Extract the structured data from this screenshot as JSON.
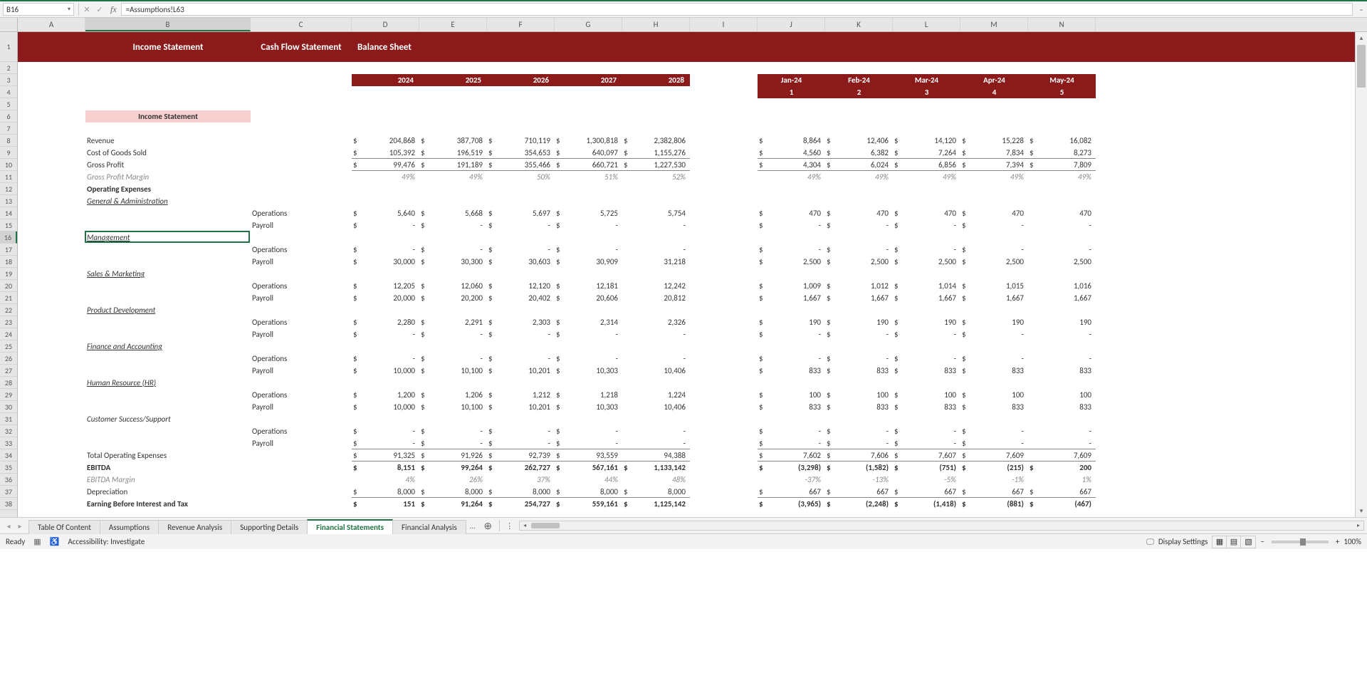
{
  "nameBox": "B16",
  "formula": "=Assumptions!L63",
  "colWidths": {
    "A": 95,
    "B": 232,
    "C": 142,
    "D": 95,
    "E": 95,
    "F": 95,
    "G": 95,
    "H": 95,
    "I": 95,
    "J": 95,
    "K": 95,
    "L": 95,
    "M": 95,
    "N": 95
  },
  "columns": [
    "A",
    "B",
    "C",
    "D",
    "E",
    "F",
    "G",
    "H",
    "I",
    "J",
    "K",
    "L",
    "M",
    "N"
  ],
  "selectedCell": "B16",
  "headerSections": [
    {
      "label": "Income Statement",
      "col": "B"
    },
    {
      "label": "Cash Flow Statement",
      "col": "C"
    },
    {
      "label": "Balance Sheet",
      "col": "D",
      "align": "left"
    }
  ],
  "years": [
    {
      "col": "D",
      "text": "2024"
    },
    {
      "col": "E",
      "text": "2025"
    },
    {
      "col": "F",
      "text": "2026"
    },
    {
      "col": "G",
      "text": "2027"
    },
    {
      "col": "H",
      "text": "2028"
    }
  ],
  "months": [
    {
      "col": "J",
      "text": "Jan-24",
      "num": "1"
    },
    {
      "col": "K",
      "text": "Feb-24",
      "num": "2"
    },
    {
      "col": "L",
      "text": "Mar-24",
      "num": "3"
    },
    {
      "col": "M",
      "text": "Apr-24",
      "num": "4"
    },
    {
      "col": "N",
      "text": "May-24",
      "num": "5"
    }
  ],
  "sectionTitle": "Income Statement",
  "rows": [
    {
      "r": 8,
      "labelB": "Revenue",
      "dollar": true,
      "vals": [
        "204,868",
        "387,708",
        "710,119",
        "1,300,818",
        "2,382,806"
      ],
      "mvals": [
        "8,864",
        "12,406",
        "14,120",
        "15,228",
        "16,082"
      ],
      "mdollar": true
    },
    {
      "r": 9,
      "labelB": "Cost of Goods Sold",
      "dollar": true,
      "vals": [
        "105,392",
        "196,519",
        "354,653",
        "640,097",
        "1,155,276"
      ],
      "mvals": [
        "4,560",
        "6,382",
        "7,264",
        "7,834",
        "8,273"
      ],
      "mdollar": true,
      "borderBottom": true
    },
    {
      "r": 10,
      "labelB": "Gross Profit",
      "dollar": true,
      "vals": [
        "99,476",
        "191,189",
        "355,466",
        "660,721",
        "1,227,530"
      ],
      "mvals": [
        "4,304",
        "6,024",
        "6,856",
        "7,394",
        "7,809"
      ],
      "mdollar": true,
      "borderBottom": true
    },
    {
      "r": 11,
      "labelB": "Gross Profit Margin",
      "italic": true,
      "vals": [
        "49%",
        "49%",
        "50%",
        "51%",
        "52%"
      ],
      "mvals": [
        "49%",
        "49%",
        "49%",
        "49%",
        "49%"
      ],
      "pct": true
    },
    {
      "r": 12,
      "labelB": "Operating Expenses",
      "bold": true
    },
    {
      "r": 13,
      "labelB": "General & Administration",
      "underline": true
    },
    {
      "r": 14,
      "labelC": "Operations",
      "dollar": true,
      "vals": [
        "5,640",
        "5,668",
        "5,697",
        "5,725",
        "5,754"
      ],
      "mvals": [
        "470",
        "470",
        "470",
        "470",
        "470"
      ],
      "mdollar": true,
      "lastNoDollar": true
    },
    {
      "r": 15,
      "labelC": "Payroll",
      "dollar": true,
      "vals": [
        "-",
        "-",
        "-",
        "-",
        "-"
      ],
      "mvals": [
        "-",
        "-",
        "-",
        "-",
        "-"
      ],
      "mdollar": true,
      "lastNoDollar": true
    },
    {
      "r": 16,
      "labelB": "Management",
      "underline": true,
      "active": true
    },
    {
      "r": 17,
      "labelC": "Operations",
      "dollar": true,
      "vals": [
        "-",
        "-",
        "-",
        "-",
        "-"
      ],
      "mvals": [
        "-",
        "-",
        "-",
        "-",
        "-"
      ],
      "mdollar": true,
      "lastNoDollar": true
    },
    {
      "r": 18,
      "labelC": "Payroll",
      "dollar": true,
      "vals": [
        "30,000",
        "30,300",
        "30,603",
        "30,909",
        "31,218"
      ],
      "mvals": [
        "2,500",
        "2,500",
        "2,500",
        "2,500",
        "2,500"
      ],
      "mdollar": true,
      "lastNoDollar": true
    },
    {
      "r": 19,
      "labelB": "Sales & Marketing",
      "underline": true
    },
    {
      "r": 20,
      "labelC": "Operations",
      "dollar": true,
      "vals": [
        "12,205",
        "12,060",
        "12,120",
        "12,181",
        "12,242"
      ],
      "mvals": [
        "1,009",
        "1,012",
        "1,014",
        "1,015",
        "1,016"
      ],
      "mdollar": true,
      "lastNoDollar": true
    },
    {
      "r": 21,
      "labelC": "Payroll",
      "dollar": true,
      "vals": [
        "20,000",
        "20,200",
        "20,402",
        "20,606",
        "20,812"
      ],
      "mvals": [
        "1,667",
        "1,667",
        "1,667",
        "1,667",
        "1,667"
      ],
      "mdollar": true,
      "lastNoDollar": true
    },
    {
      "r": 22,
      "labelB": "Product Development",
      "underline": true
    },
    {
      "r": 23,
      "labelC": "Operations",
      "dollar": true,
      "vals": [
        "2,280",
        "2,291",
        "2,303",
        "2,314",
        "2,326"
      ],
      "mvals": [
        "190",
        "190",
        "190",
        "190",
        "190"
      ],
      "mdollar": true,
      "lastNoDollar": true
    },
    {
      "r": 24,
      "labelC": "Payroll",
      "dollar": true,
      "vals": [
        "-",
        "-",
        "-",
        "-",
        "-"
      ],
      "mvals": [
        "-",
        "-",
        "-",
        "-",
        "-"
      ],
      "mdollar": true,
      "lastNoDollar": true
    },
    {
      "r": 25,
      "labelB": "Finance and Accounting",
      "underline": true
    },
    {
      "r": 26,
      "labelC": "Operations",
      "dollar": true,
      "vals": [
        "-",
        "-",
        "-",
        "-",
        "-"
      ],
      "mvals": [
        "-",
        "-",
        "-",
        "-",
        "-"
      ],
      "mdollar": true,
      "lastNoDollar": true
    },
    {
      "r": 27,
      "labelC": "Payroll",
      "dollar": true,
      "vals": [
        "10,000",
        "10,100",
        "10,201",
        "10,303",
        "10,406"
      ],
      "mvals": [
        "833",
        "833",
        "833",
        "833",
        "833"
      ],
      "mdollar": true,
      "lastNoDollar": true
    },
    {
      "r": 28,
      "labelB": "Human Resource (HR)",
      "underline": true
    },
    {
      "r": 29,
      "labelC": "Operations",
      "dollar": true,
      "vals": [
        "1,200",
        "1,206",
        "1,212",
        "1,218",
        "1,224"
      ],
      "mvals": [
        "100",
        "100",
        "100",
        "100",
        "100"
      ],
      "mdollar": true,
      "lastNoDollar": true
    },
    {
      "r": 30,
      "labelC": "Payroll",
      "dollar": true,
      "vals": [
        "10,000",
        "10,100",
        "10,201",
        "10,303",
        "10,406"
      ],
      "mvals": [
        "833",
        "833",
        "833",
        "833",
        "833"
      ],
      "mdollar": true,
      "lastNoDollar": true
    },
    {
      "r": 31,
      "labelB": "Customer Success/Support",
      "italic2": true
    },
    {
      "r": 32,
      "labelC": "Operations",
      "dollar": true,
      "vals": [
        "-",
        "-",
        "-",
        "-",
        "-"
      ],
      "mvals": [
        "-",
        "-",
        "-",
        "-",
        "-"
      ],
      "mdollar": true,
      "lastNoDollar": true
    },
    {
      "r": 33,
      "labelC": "Payroll",
      "dollar": true,
      "vals": [
        "-",
        "-",
        "-",
        "-",
        "-"
      ],
      "mvals": [
        "-",
        "-",
        "-",
        "-",
        "-"
      ],
      "mdollar": true,
      "lastNoDollar": true,
      "borderBottom": true
    },
    {
      "r": 34,
      "labelB": "Total Operating Expenses",
      "dollar": true,
      "vals": [
        "91,325",
        "91,926",
        "92,739",
        "93,559",
        "94,388"
      ],
      "mvals": [
        "7,602",
        "7,606",
        "7,607",
        "7,609",
        "7,609]"
      ],
      "mdollar": true,
      "lastNoDollar": true,
      "borderBottom": true
    },
    {
      "r": 35,
      "labelB": "EBITDA",
      "bold": true,
      "dollar": true,
      "vals": [
        "8,151",
        "99,264",
        "262,727",
        "567,161",
        "1,133,142"
      ],
      "mvals": [
        "(3,298)",
        "(1,582)",
        "(751)",
        "(215)",
        "200"
      ],
      "mdollar": true
    },
    {
      "r": 36,
      "labelB": "EBITDA Margin",
      "italic": true,
      "vals": [
        "4%",
        "26%",
        "37%",
        "44%",
        "48%"
      ],
      "mvals": [
        "-37%",
        "-13%",
        "-5%",
        "-1%",
        "1%"
      ],
      "pct": true
    },
    {
      "r": 37,
      "labelB": "Depreciation",
      "dollar": true,
      "vals": [
        "8,000",
        "8,000",
        "8,000",
        "8,000",
        "8,000"
      ],
      "mvals": [
        "667",
        "667",
        "667",
        "667",
        "667"
      ],
      "mdollar": true,
      "borderBottom": true
    },
    {
      "r": 38,
      "labelB": "Earning Before Interest and Tax",
      "bold": true,
      "dollar": true,
      "vals": [
        "151",
        "91,264",
        "254,727",
        "559,161",
        "1,125,142"
      ],
      "mvals": [
        "(3,965)",
        "(2,248)",
        "(1,418)",
        "(881)",
        "(467)"
      ],
      "mdollar": true,
      "cut": true
    }
  ],
  "tabs": [
    "Table Of Content",
    "Assumptions",
    "Revenue Analysis",
    "Supporting Details",
    "Financial Statements",
    "Financial Analysis"
  ],
  "activeTab": "Financial Statements",
  "status": {
    "ready": "Ready",
    "accessibility": "Accessibility: Investigate",
    "displaySettings": "Display Settings",
    "zoom": "100%"
  }
}
